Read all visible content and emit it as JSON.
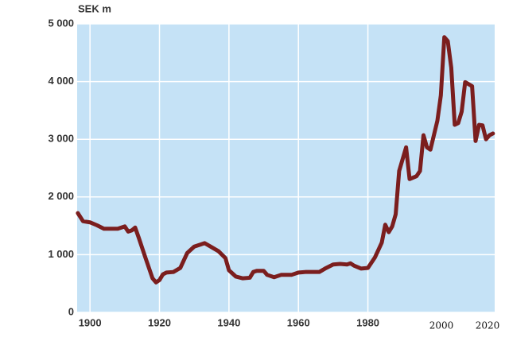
{
  "chart_data": {
    "type": "line",
    "title": "SEK m",
    "x": [
      1896.5,
      1898,
      1900,
      1902,
      1904,
      1906,
      1908,
      1910,
      1911,
      1912,
      1913,
      1914,
      1916,
      1918,
      1919,
      1920,
      1921,
      1922,
      1924,
      1926,
      1928,
      1930,
      1932,
      1933,
      1935,
      1937,
      1939,
      1940,
      1942,
      1944,
      1946,
      1947,
      1948,
      1950,
      1951,
      1953,
      1955,
      1958,
      1960,
      1962,
      1966,
      1968,
      1970,
      1972,
      1974,
      1975,
      1976,
      1978,
      1980,
      1982,
      1984,
      1985,
      1986,
      1987,
      1988,
      1989,
      1991,
      1992,
      1994,
      1995,
      1996,
      1997,
      1998,
      2000,
      2001,
      2002,
      2003,
      2004,
      2005,
      2006,
      2007,
      2008,
      2010,
      2011,
      2012,
      2013,
      2014,
      2015,
      2016
    ],
    "series": [
      {
        "color": "#7b1e1e",
        "values": [
          1720,
          1580,
          1560,
          1510,
          1450,
          1450,
          1450,
          1490,
          1400,
          1420,
          1470,
          1300,
          940,
          590,
          520,
          560,
          660,
          690,
          700,
          770,
          1030,
          1140,
          1180,
          1200,
          1130,
          1060,
          940,
          730,
          620,
          590,
          600,
          700,
          720,
          720,
          650,
          610,
          650,
          650,
          690,
          700,
          700,
          770,
          830,
          840,
          830,
          850,
          810,
          760,
          770,
          950,
          1210,
          1520,
          1390,
          1490,
          1700,
          2450,
          2860,
          2310,
          2360,
          2450,
          3070,
          2860,
          2820,
          3320,
          3760,
          4770,
          4700,
          4240,
          3250,
          3280,
          3480,
          3990,
          3920,
          2970,
          3250,
          3240,
          3000,
          3070,
          3100
        ]
      }
    ],
    "xlim": [
      1896.3,
      2016.5
    ],
    "xticks": [
      1900,
      1920,
      1940,
      1960,
      1980
    ],
    "ylim": [
      0,
      5000
    ],
    "yticks": [
      0,
      {
        "value": 1000,
        "label": "1 000"
      },
      {
        "value": 2000,
        "label": "2 000"
      },
      {
        "value": 3000,
        "label": "3 000"
      },
      {
        "value": 4000,
        "label": "4 000"
      },
      {
        "value": 5000,
        "label": "5 000"
      }
    ],
    "grid": true,
    "background": "#c5e2f6",
    "annotations": [
      "2000",
      "2020"
    ]
  }
}
